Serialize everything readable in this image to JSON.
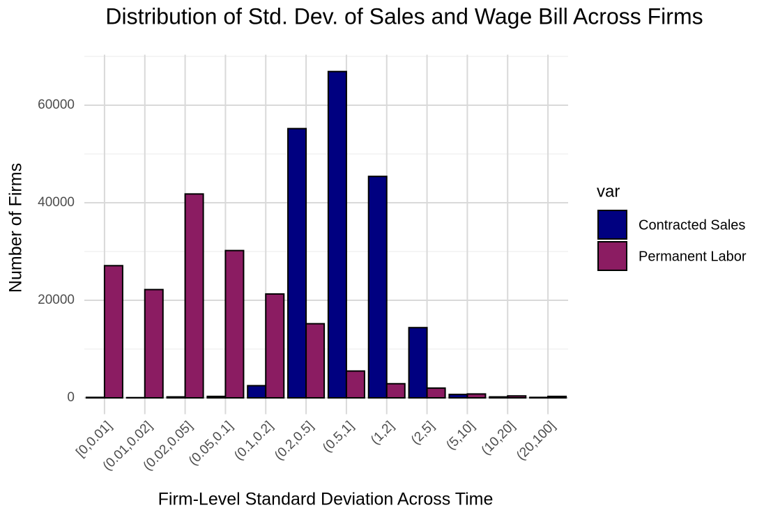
{
  "chart_data": {
    "type": "bar",
    "title": "Distribution of Std. Dev. of Sales and Wage Bill Across Firms",
    "x_label": "Firm-Level Standard Deviation Across Time",
    "y_label": "Number of Firms",
    "legend_title": "var",
    "categories": [
      "[0,0.01]",
      "(0.01,0.02]",
      "(0.02,0.05]",
      "(0.05,0.1]",
      "(0.1,0.2]",
      "(0.2,0.5]",
      "(0.5,1]",
      "(1,2]",
      "(2,5]",
      "(5,10]",
      "(10,20]",
      "(20,100]"
    ],
    "series": [
      {
        "name": "Contracted Sales",
        "color": "#000080",
        "values": [
          100,
          50,
          200,
          300,
          2500,
          55200,
          66900,
          45400,
          14400,
          700,
          200,
          100
        ]
      },
      {
        "name": "Permanent Labor",
        "color": "#8b1c62",
        "values": [
          27100,
          22200,
          41800,
          30200,
          21300,
          15200,
          5500,
          2900,
          2000,
          800,
          400,
          300
        ]
      }
    ],
    "ylim": [
      -3350,
      70350
    ],
    "yticks": [
      0,
      20000,
      40000,
      60000
    ],
    "yminor": [
      10000,
      30000,
      50000,
      70000
    ],
    "grid": true
  }
}
